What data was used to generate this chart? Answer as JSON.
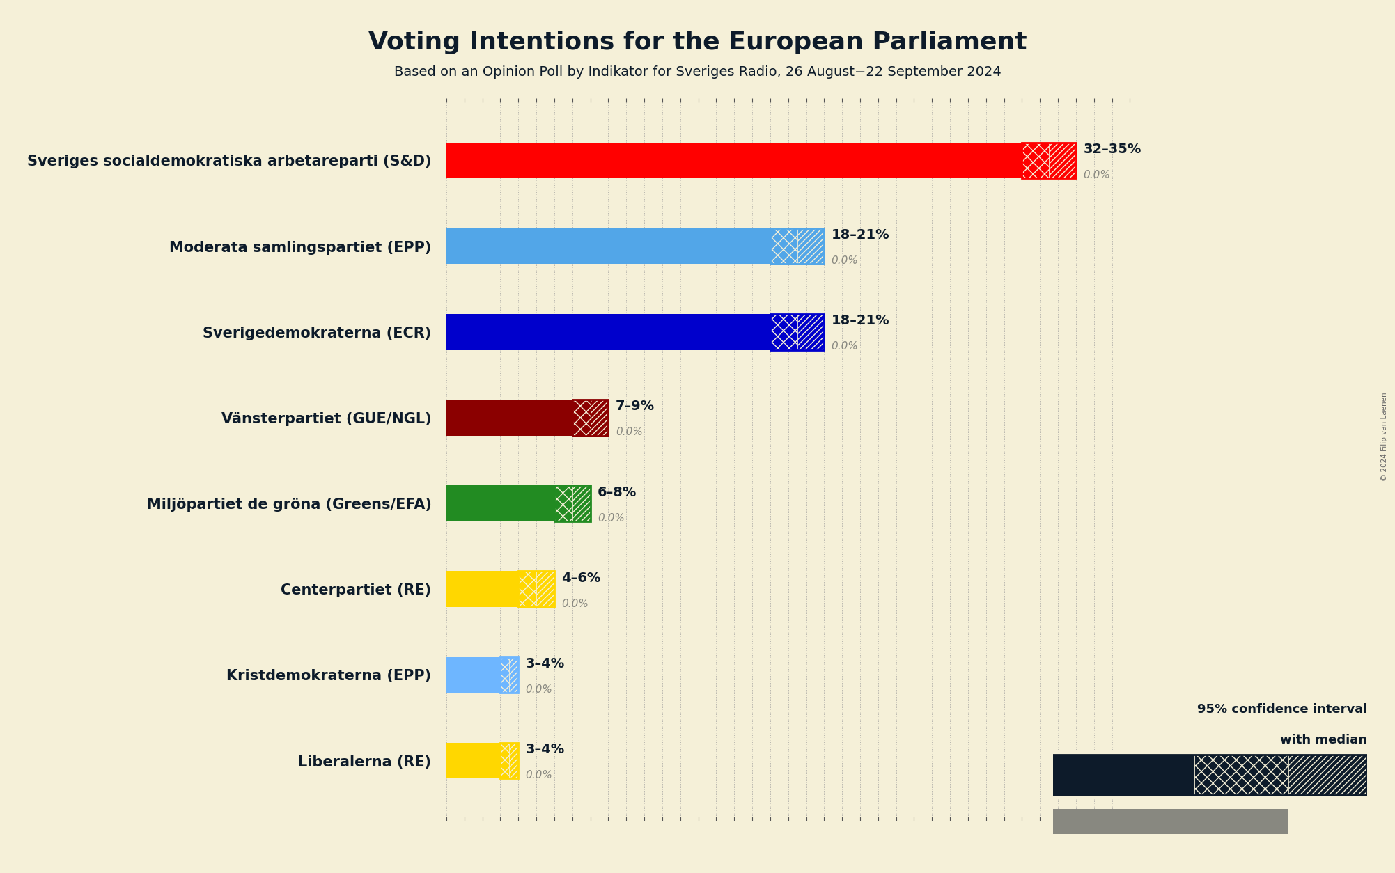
{
  "title": "Voting Intentions for the European Parliament",
  "subtitle": "Based on an Opinion Poll by Indikator for Sveriges Radio, 26 August−22 September 2024",
  "copyright": "© 2024 Filip van Laenen",
  "background_color": "#f5f0d8",
  "parties": [
    {
      "name": "Sveriges socialdemokratiska arbetareparti (S&D)",
      "low": 32,
      "high": 35,
      "median": 32,
      "color": "#FF0000",
      "label": "32–35%",
      "last_label": "0.0%"
    },
    {
      "name": "Moderata samlingspartiet (EPP)",
      "low": 18,
      "high": 21,
      "median": 18,
      "color": "#52A6E8",
      "label": "18–21%",
      "last_label": "0.0%"
    },
    {
      "name": "Sverigedemokraterna (ECR)",
      "low": 18,
      "high": 21,
      "median": 18,
      "color": "#0000CC",
      "label": "18–21%",
      "last_label": "0.0%"
    },
    {
      "name": "Vänsterpartiet (GUE/NGL)",
      "low": 7,
      "high": 9,
      "median": 7,
      "color": "#8B0000",
      "label": "7–9%",
      "last_label": "0.0%"
    },
    {
      "name": "Miljöpartiet de gröna (Greens/EFA)",
      "low": 6,
      "high": 8,
      "median": 6,
      "color": "#228B22",
      "label": "6–8%",
      "last_label": "0.0%"
    },
    {
      "name": "Centerpartiet (RE)",
      "low": 4,
      "high": 6,
      "median": 4,
      "color": "#FFD700",
      "label": "4–6%",
      "last_label": "0.0%"
    },
    {
      "name": "Kristdemokraterna (EPP)",
      "low": 3,
      "high": 4,
      "median": 3,
      "color": "#6EB6FF",
      "label": "3–4%",
      "last_label": "0.0%"
    },
    {
      "name": "Liberalerna (RE)",
      "low": 3,
      "high": 4,
      "median": 3,
      "color": "#FFD700",
      "label": "3–4%",
      "last_label": "0.0%"
    }
  ],
  "xlim": [
    0,
    38
  ],
  "bar_height": 0.42,
  "legend_color": "#0D1B2A",
  "last_result_color": "#888880",
  "text_color": "#0D1B2A"
}
